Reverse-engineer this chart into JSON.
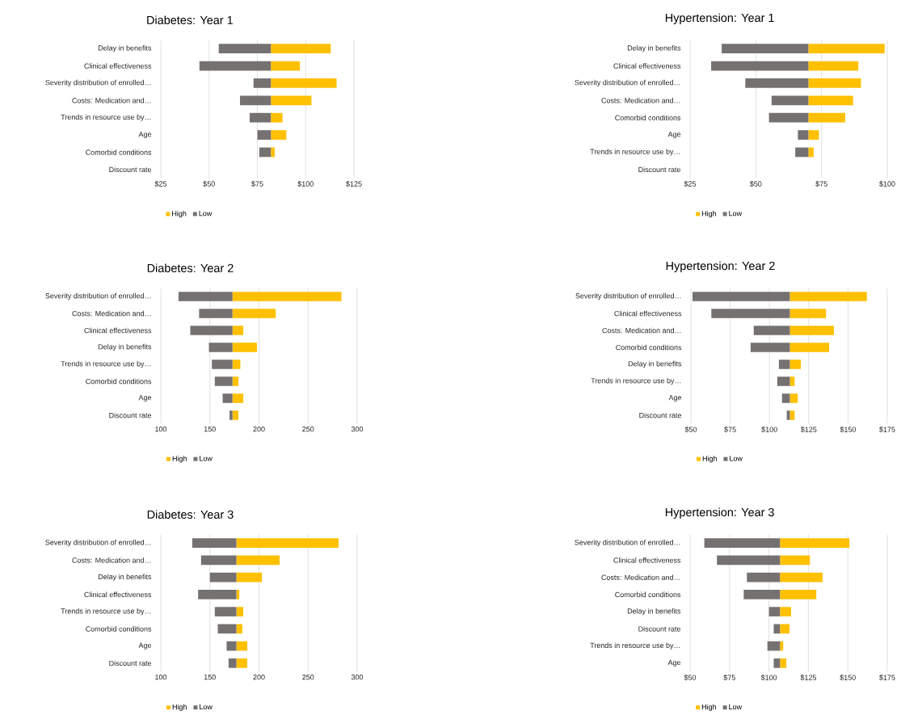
{
  "chart_data": [
    {
      "type": "bar",
      "orientation": "horizontal",
      "title": "Diabetes: Year 1",
      "categories": [
        "Delay in benefits",
        "Clinical effectiveness",
        "Severity distribution of enrolled…",
        "Costs: Medication and…",
        "Trends in resource use by…",
        "Age",
        "Comorbid conditions",
        "Discount rate"
      ],
      "series": [
        {
          "name": "High",
          "color": "#ffc000",
          "base": [
            82,
            82,
            82,
            82,
            82,
            82,
            82,
            null
          ],
          "values": [
            31,
            15,
            34,
            21,
            6,
            8,
            2,
            null
          ]
        },
        {
          "name": "Low",
          "color": "#767171",
          "base": [
            82,
            82,
            82,
            82,
            82,
            82,
            82,
            null
          ],
          "values": [
            -27,
            -37,
            -9,
            -16,
            -11,
            -7,
            -6,
            null
          ]
        }
      ],
      "xlim": [
        25,
        125
      ],
      "xticks": [
        {
          "value": 25,
          "label": "$25"
        },
        {
          "value": 50,
          "label": "$50"
        },
        {
          "value": 75,
          "label": "$75"
        },
        {
          "value": 100,
          "label": "$100"
        },
        {
          "value": 125,
          "label": "$125"
        }
      ],
      "grid": "x",
      "legend": "bottom"
    },
    {
      "type": "bar",
      "orientation": "horizontal",
      "title": "Hypertension: Year 1",
      "categories": [
        "Delay in benefits",
        "Clinical effectiveness",
        "Severity distribution of enrolled…",
        "Costs: Medication and…",
        "Comorbid conditions",
        "Age",
        "Trends in resource use by…",
        "Discount rate"
      ],
      "series": [
        {
          "name": "High",
          "color": "#ffc000",
          "base": [
            70,
            70,
            70,
            70,
            70,
            70,
            70,
            null
          ],
          "values": [
            29,
            19,
            20,
            17,
            14,
            4,
            2,
            null
          ]
        },
        {
          "name": "Low",
          "color": "#767171",
          "base": [
            70,
            70,
            70,
            70,
            70,
            70,
            70,
            null
          ],
          "values": [
            -33,
            -37,
            -24,
            -14,
            -15,
            -4,
            -5,
            null
          ]
        }
      ],
      "xlim": [
        25,
        100
      ],
      "xticks": [
        {
          "value": 25,
          "label": "$25"
        },
        {
          "value": 50,
          "label": "$50"
        },
        {
          "value": 75,
          "label": "$75"
        },
        {
          "value": 100,
          "label": "$100"
        }
      ],
      "grid": "x",
      "legend": "bottom"
    },
    {
      "type": "bar",
      "orientation": "horizontal",
      "title": "Diabetes: Year 2",
      "categories": [
        "Severity distribution of enrolled…",
        "Costs: Medication and…",
        "Clinical effectiveness",
        "Delay in benefits",
        "Trends in resource use by…",
        "Comorbid conditions",
        "Age",
        "Discount rate"
      ],
      "series": [
        {
          "name": "High",
          "color": "#ffc000",
          "base": [
            173,
            173,
            173,
            173,
            173,
            173,
            173,
            173
          ],
          "values": [
            111,
            44,
            11,
            25,
            8,
            6,
            11,
            6
          ]
        },
        {
          "name": "Low",
          "color": "#767171",
          "base": [
            173,
            173,
            173,
            173,
            173,
            173,
            173,
            173
          ],
          "values": [
            -55,
            -34,
            -43,
            -24,
            -21,
            -18,
            -10,
            -3
          ]
        }
      ],
      "xlim": [
        100,
        300
      ],
      "xticks": [
        100,
        150,
        200,
        250,
        300
      ],
      "grid": "x",
      "legend": "bottom"
    },
    {
      "type": "bar",
      "orientation": "horizontal",
      "title": "Hypertension: Year 2",
      "categories": [
        "Severity distribution of enrolled…",
        "Clinical effectiveness",
        "Costs: Medication and…",
        "Comorbid conditions",
        "Delay in benefits",
        "Trends in resource use by…",
        "Age",
        "Discount rate"
      ],
      "series": [
        {
          "name": "High",
          "color": "#ffc000",
          "base": [
            113,
            113,
            113,
            113,
            113,
            113,
            113,
            113
          ],
          "values": [
            49,
            23,
            28,
            25,
            7,
            3,
            5,
            3
          ]
        },
        {
          "name": "Low",
          "color": "#767171",
          "base": [
            113,
            113,
            113,
            113,
            113,
            113,
            113,
            113
          ],
          "values": [
            -62,
            -50,
            -23,
            -25,
            -7,
            -8,
            -5,
            -2
          ]
        }
      ],
      "xlim": [
        50,
        175
      ],
      "xticks": [
        {
          "value": 50,
          "label": "$50"
        },
        {
          "value": 75,
          "label": "$75"
        },
        {
          "value": 100,
          "label": "$100"
        },
        {
          "value": 125,
          "label": "$125"
        },
        {
          "value": 150,
          "label": "$150"
        },
        {
          "value": 175,
          "label": "$175"
        }
      ],
      "grid": "x",
      "legend": "bottom"
    },
    {
      "type": "bar",
      "orientation": "horizontal",
      "title": "Diabetes: Year 3",
      "categories": [
        "Severity distribution of enrolled…",
        "Costs: Medication and…",
        "Delay in benefits",
        "Clinical effectiveness",
        "Trends in resource use by…",
        "Comorbid conditions",
        "Age",
        "Discount rate"
      ],
      "series": [
        {
          "name": "High",
          "color": "#ffc000",
          "base": [
            177,
            177,
            177,
            177,
            177,
            177,
            177,
            177
          ],
          "values": [
            104,
            44,
            26,
            3,
            7,
            6,
            11,
            11
          ]
        },
        {
          "name": "Low",
          "color": "#767171",
          "base": [
            177,
            177,
            177,
            177,
            177,
            177,
            177,
            177
          ],
          "values": [
            -45,
            -36,
            -27,
            -39,
            -22,
            -19,
            -10,
            -8
          ]
        }
      ],
      "xlim": [
        100,
        300
      ],
      "xticks": [
        100,
        150,
        200,
        250,
        300
      ],
      "grid": "x",
      "legend": "bottom"
    },
    {
      "type": "bar",
      "orientation": "horizontal",
      "title": "Hypertension: Year 3",
      "categories": [
        "Severity distribution of enrolled…",
        "Clinical effectiveness",
        "Costs: Medication and…",
        "Comorbid conditions",
        "Delay in benefits",
        "Discount rate",
        "Trends in resource use by…",
        "Age"
      ],
      "series": [
        {
          "name": "High",
          "color": "#ffc000",
          "base": [
            107,
            107,
            107,
            107,
            107,
            107,
            107,
            107
          ],
          "values": [
            44,
            19,
            27,
            23,
            7,
            6,
            2,
            4
          ]
        },
        {
          "name": "Low",
          "color": "#767171",
          "base": [
            107,
            107,
            107,
            107,
            107,
            107,
            107,
            107
          ],
          "values": [
            -48,
            -40,
            -21,
            -23,
            -7,
            -4,
            -8,
            -4
          ]
        }
      ],
      "xlim": [
        50,
        175
      ],
      "xticks": [
        {
          "value": 50,
          "label": "$50"
        },
        {
          "value": 75,
          "label": "$75"
        },
        {
          "value": 100,
          "label": "$100"
        },
        {
          "value": 125,
          "label": "$125"
        },
        {
          "value": 150,
          "label": "$150"
        },
        {
          "value": 175,
          "label": "$175"
        }
      ],
      "grid": "x",
      "legend": "bottom"
    }
  ]
}
